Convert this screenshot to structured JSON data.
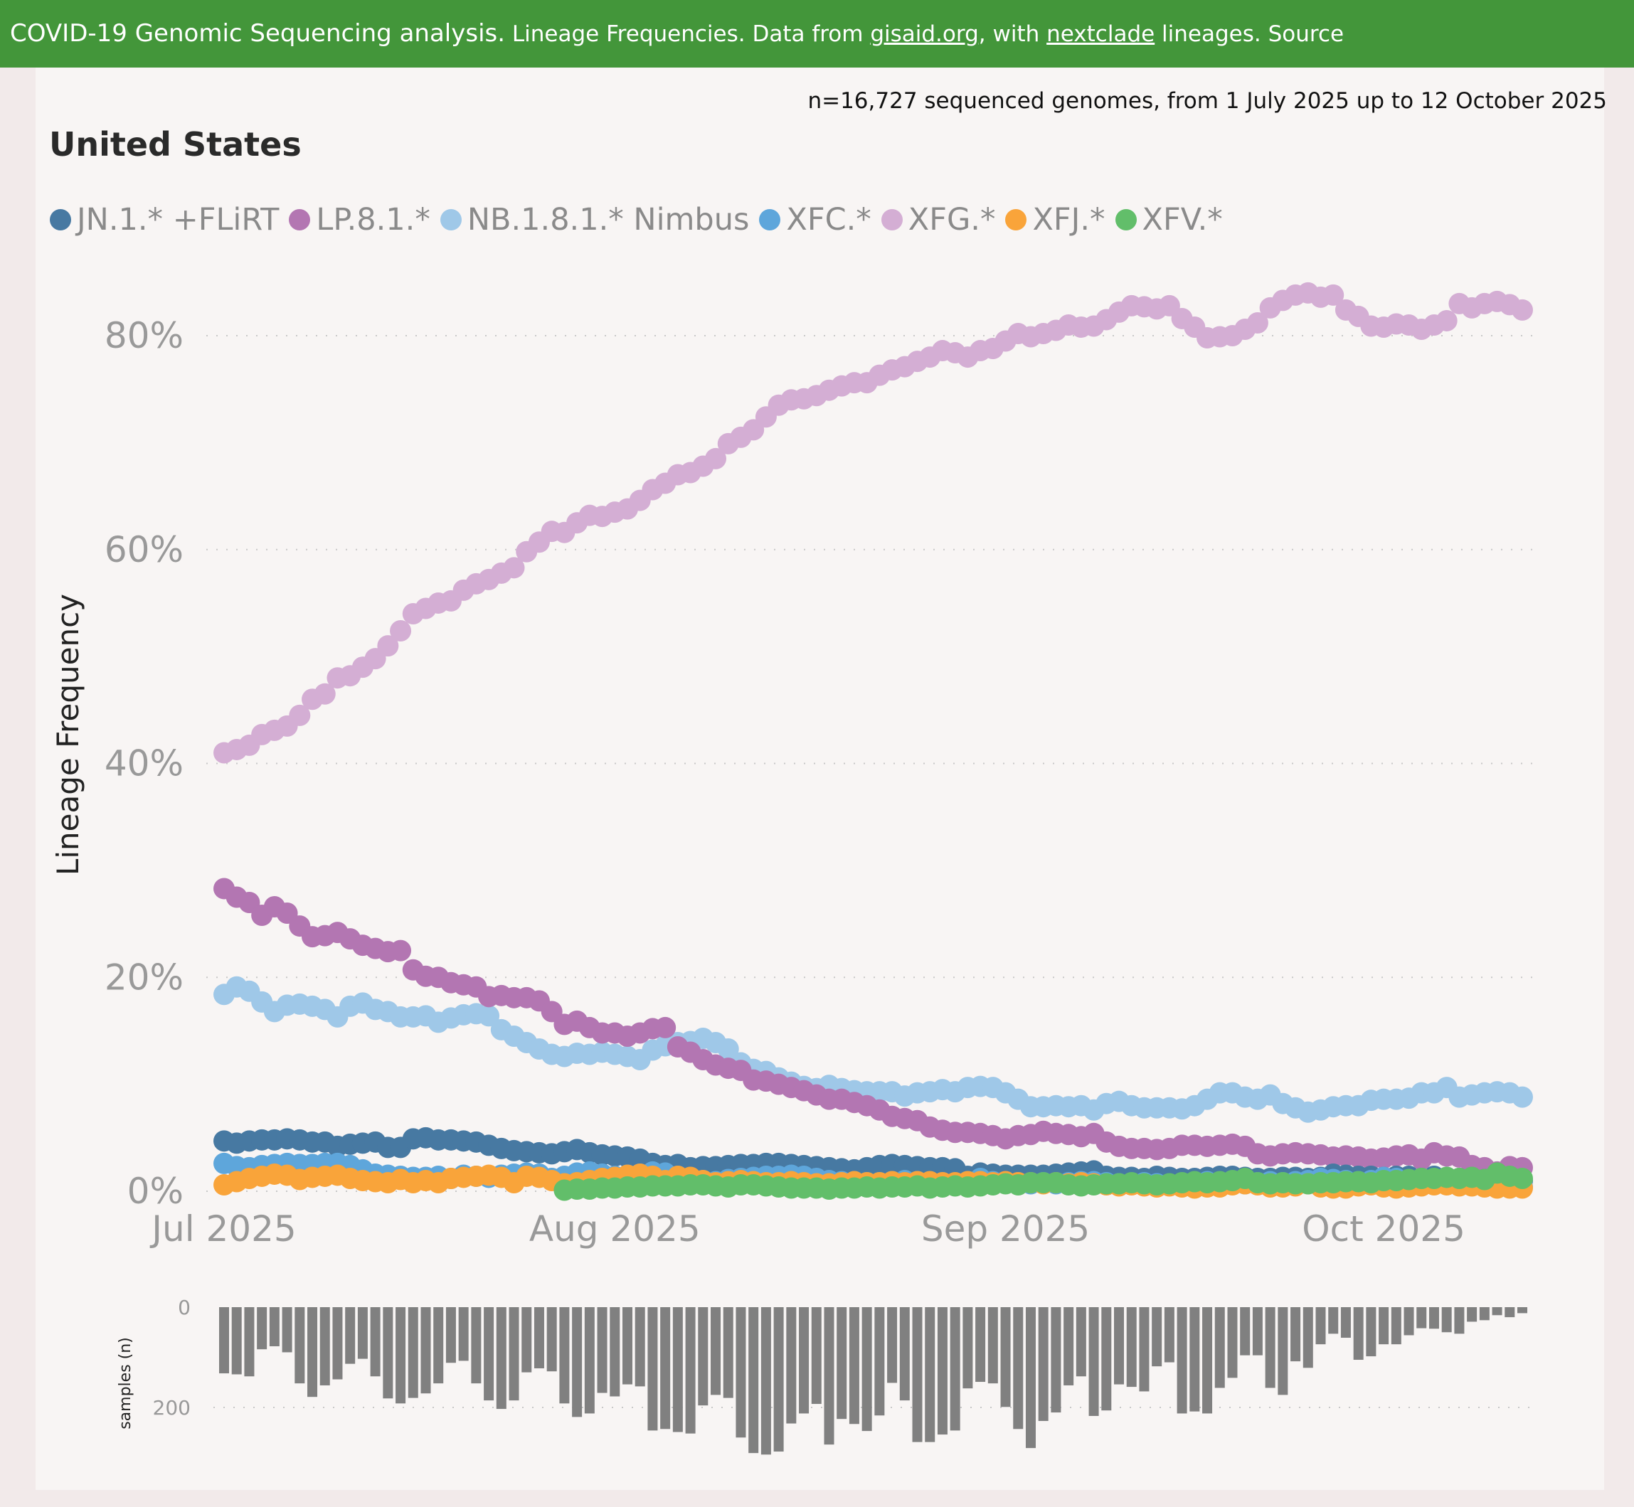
{
  "header": {
    "part1": "COVID-19 Genomic Sequencing analysis.",
    "part2": " Lineage Frequencies. Data from ",
    "link1": "gisaid.org",
    "part3": ", with ",
    "link2": "nextclade",
    "part4": " lineages. Source"
  },
  "subtitle": "n=16,727 sequenced genomes, from 1 July 2025 up to 12 October 2025",
  "region": "United States",
  "chart_data": [
    {
      "type": "scatter",
      "ylabel": "Lineage Frequency",
      "ylim": [
        0,
        85
      ],
      "yticks": [
        0,
        20,
        40,
        60,
        80
      ],
      "ytick_labels": [
        "0%",
        "20%",
        "40%",
        "60%",
        "80%"
      ],
      "x_start": "2025-07-01",
      "x_end": "2025-10-12",
      "xticks": [
        "2025-07-01",
        "2025-08-01",
        "2025-09-01",
        "2025-10-01"
      ],
      "xtick_labels": [
        "Jul 2025",
        "Aug 2025",
        "Sep 2025",
        "Oct 2025"
      ],
      "grid": "horizontal dotted",
      "legend": "top-left",
      "series": [
        {
          "name": "JN.1.* +FLiRT",
          "color": "#4779a2",
          "values": [
            4.7,
            4.5,
            4.7,
            4.8,
            4.8,
            4.9,
            4.8,
            4.6,
            4.6,
            4.2,
            4.4,
            4.5,
            4.6,
            4.1,
            4.1,
            4.9,
            5.0,
            4.8,
            4.8,
            4.7,
            4.6,
            4.3,
            4.0,
            3.8,
            3.7,
            3.6,
            3.5,
            3.7,
            3.9,
            3.6,
            3.4,
            3.3,
            3.2,
            3.0,
            2.6,
            2.4,
            2.5,
            2.2,
            2.3,
            2.3,
            2.4,
            2.5,
            2.5,
            2.6,
            2.6,
            2.5,
            2.4,
            2.3,
            2.2,
            2.1,
            2.0,
            2.2,
            2.4,
            2.5,
            2.4,
            2.3,
            2.2,
            2.2,
            2.1,
            1.4,
            1.7,
            1.6,
            1.5,
            1.5,
            1.5,
            1.5,
            1.6,
            1.7,
            1.8,
            1.9,
            1.4,
            1.3,
            1.3,
            1.2,
            1.4,
            1.3,
            1.2,
            1.2,
            1.3,
            1.4,
            1.4,
            1.3,
            1.2,
            1.2,
            1.3,
            1.3,
            1.2,
            1.3,
            1.6,
            1.5,
            1.4,
            1.4,
            1.3,
            1.4,
            1.4,
            1.2,
            1.4,
            1.3,
            1.2,
            1.2,
            1.1,
            1.0,
            1.2,
            1.0
          ]
        },
        {
          "name": "LP.8.1.*",
          "color": "#b376b2",
          "values": [
            28.3,
            27.5,
            27.0,
            25.8,
            26.6,
            26.0,
            24.8,
            23.8,
            23.9,
            24.2,
            23.6,
            23.0,
            22.7,
            22.4,
            22.5,
            20.7,
            20.1,
            20.0,
            19.5,
            19.3,
            19.1,
            18.2,
            18.3,
            18.1,
            18.1,
            17.8,
            16.8,
            15.6,
            15.9,
            15.3,
            14.8,
            14.8,
            14.5,
            14.8,
            15.2,
            15.3,
            13.5,
            13.0,
            12.3,
            11.8,
            11.5,
            11.3,
            10.4,
            10.3,
            10.0,
            9.7,
            9.4,
            9.0,
            8.6,
            8.6,
            8.3,
            8.0,
            7.6,
            7.0,
            6.8,
            6.6,
            6.0,
            5.7,
            5.5,
            5.5,
            5.4,
            5.2,
            4.9,
            5.2,
            5.3,
            5.6,
            5.4,
            5.3,
            5.1,
            5.4,
            4.6,
            4.2,
            4.0,
            4.0,
            3.9,
            4.0,
            4.3,
            4.3,
            4.2,
            4.3,
            4.4,
            4.2,
            3.5,
            3.3,
            3.5,
            3.6,
            3.5,
            3.4,
            3.2,
            3.3,
            3.2,
            3.0,
            3.1,
            3.3,
            3.4,
            3.0,
            3.6,
            3.3,
            3.2,
            2.4,
            2.2,
            1.8,
            2.3,
            2.2
          ]
        },
        {
          "name": "NB.1.8.1.* Nimbus",
          "color": "#9fc8e8",
          "values": [
            18.4,
            19.1,
            18.7,
            17.7,
            16.8,
            17.4,
            17.5,
            17.3,
            17.0,
            16.3,
            17.3,
            17.6,
            17.0,
            16.8,
            16.3,
            16.3,
            16.4,
            15.8,
            16.2,
            16.5,
            16.6,
            16.4,
            15.1,
            14.5,
            13.9,
            13.3,
            12.8,
            12.6,
            12.9,
            12.8,
            13.0,
            12.8,
            12.6,
            12.3,
            13.2,
            13.6,
            13.9,
            14.0,
            14.3,
            13.9,
            13.3,
            12.0,
            11.4,
            11.2,
            10.6,
            10.2,
            9.8,
            9.6,
            9.9,
            9.6,
            9.4,
            9.3,
            9.3,
            9.3,
            8.9,
            9.2,
            9.3,
            9.5,
            9.3,
            9.7,
            9.8,
            9.7,
            9.2,
            8.6,
            7.9,
            7.9,
            8.0,
            7.9,
            8.0,
            7.6,
            8.2,
            8.4,
            8.0,
            7.8,
            7.8,
            7.8,
            7.7,
            8.0,
            8.6,
            9.2,
            9.2,
            8.8,
            8.6,
            9.0,
            8.2,
            7.8,
            7.4,
            7.6,
            7.9,
            8.0,
            8.0,
            8.5,
            8.6,
            8.6,
            8.7,
            9.2,
            9.2,
            9.7,
            8.8,
            9.0,
            9.2,
            9.3,
            9.2,
            8.8
          ]
        },
        {
          "name": "XFC.*",
          "color": "#5ea6db",
          "values": [
            2.6,
            2.3,
            2.2,
            2.4,
            2.5,
            2.6,
            2.5,
            2.5,
            2.6,
            2.6,
            2.4,
            2.0,
            1.6,
            1.5,
            1.4,
            1.3,
            1.3,
            1.4,
            1.2,
            1.5,
            1.4,
            1.3,
            1.5,
            1.6,
            1.7,
            1.6,
            1.2,
            1.4,
            1.7,
            1.8,
            1.6,
            1.4,
            1.5,
            1.6,
            1.8,
            1.7,
            1.4,
            1.2,
            1.0,
            0.9,
            1.1,
            1.2,
            1.3,
            1.4,
            1.4,
            1.5,
            1.4,
            1.2,
            1.0,
            0.9,
            0.9,
            0.8,
            0.8,
            0.9,
            1.0,
            0.9,
            0.8,
            0.8,
            0.7,
            0.9,
            1.2,
            0.9,
            0.8,
            0.8,
            0.7,
            0.8,
            0.7,
            0.8,
            0.9,
            0.9,
            0.8,
            0.7,
            0.7,
            0.8,
            0.7,
            0.6,
            0.7,
            0.8,
            0.9,
            0.8,
            0.8,
            0.7,
            0.8,
            0.9,
            0.8,
            0.9,
            1.0,
            1.2,
            1.1,
            1.0,
            0.9,
            1.0,
            1.3,
            1.2,
            1.0,
            1.0,
            1.1,
            1.2,
            1.0,
            0.9,
            0.7,
            0.6,
            0.5,
            0.4
          ]
        },
        {
          "name": "XFG.*",
          "color": "#d4aed4",
          "values": [
            41.0,
            41.3,
            41.7,
            42.7,
            43.1,
            43.5,
            44.5,
            46.0,
            46.5,
            48.0,
            48.2,
            49.0,
            49.8,
            51.0,
            52.4,
            54.0,
            54.5,
            55.0,
            55.2,
            56.2,
            56.8,
            57.2,
            57.8,
            58.3,
            59.8,
            60.7,
            61.7,
            61.6,
            62.5,
            63.2,
            63.1,
            63.5,
            63.8,
            64.6,
            65.6,
            66.2,
            67.0,
            67.2,
            67.8,
            68.5,
            69.9,
            70.5,
            71.2,
            72.4,
            73.5,
            74.0,
            74.1,
            74.4,
            74.9,
            75.3,
            75.6,
            75.6,
            76.3,
            76.8,
            77.1,
            77.6,
            78.0,
            78.6,
            78.4,
            78.0,
            78.6,
            78.8,
            79.5,
            80.2,
            79.9,
            80.2,
            80.5,
            81.0,
            80.8,
            80.9,
            81.5,
            82.2,
            82.8,
            82.7,
            82.5,
            82.8,
            81.6,
            80.8,
            79.8,
            79.9,
            80.0,
            80.6,
            81.2,
            82.6,
            83.3,
            83.8,
            84.0,
            83.6,
            83.8,
            82.4,
            81.8,
            80.9,
            80.8,
            81.1,
            81.0,
            80.6,
            81.0,
            81.4,
            83.0,
            82.6,
            83.0,
            83.2,
            82.9,
            82.4
          ]
        },
        {
          "name": "XFJ.*",
          "color": "#f9a43a",
          "values": [
            0.6,
            0.9,
            1.2,
            1.4,
            1.6,
            1.5,
            1.1,
            1.3,
            1.4,
            1.5,
            1.2,
            1.0,
            0.9,
            0.8,
            1.1,
            0.8,
            1.0,
            0.8,
            1.2,
            1.3,
            1.4,
            1.5,
            1.3,
            0.8,
            1.4,
            1.3,
            1.0,
            0.7,
            0.8,
            1.0,
            1.2,
            1.3,
            1.5,
            1.6,
            1.4,
            1.0,
            1.4,
            1.3,
            1.0,
            0.8,
            0.9,
            1.0,
            0.9,
            0.8,
            0.8,
            0.9,
            0.8,
            0.7,
            0.7,
            0.8,
            0.9,
            0.8,
            0.8,
            0.9,
            0.8,
            0.9,
            0.9,
            0.8,
            0.8,
            0.9,
            0.9,
            0.8,
            0.9,
            0.8,
            0.8,
            0.7,
            0.8,
            0.7,
            0.8,
            0.7,
            0.6,
            0.5,
            0.6,
            0.5,
            0.4,
            0.5,
            0.4,
            0.3,
            0.4,
            0.4,
            0.6,
            0.7,
            0.6,
            0.4,
            0.4,
            0.5,
            0.7,
            0.4,
            0.3,
            0.3,
            0.5,
            0.6,
            0.4,
            0.3,
            0.4,
            0.5,
            0.6,
            0.6,
            0.5,
            0.5,
            0.4,
            0.3,
            0.3,
            0.3
          ]
        },
        {
          "name": "XFV.*",
          "color": "#62be6a",
          "values": [
            null,
            null,
            null,
            null,
            null,
            null,
            null,
            null,
            null,
            null,
            null,
            null,
            null,
            null,
            null,
            null,
            null,
            null,
            null,
            null,
            null,
            null,
            null,
            null,
            null,
            null,
            null,
            0.1,
            0.2,
            0.2,
            0.3,
            0.3,
            0.4,
            0.4,
            0.5,
            0.5,
            0.5,
            0.6,
            0.6,
            0.5,
            0.4,
            0.6,
            0.6,
            0.5,
            0.4,
            0.3,
            0.3,
            0.3,
            0.2,
            0.3,
            0.3,
            0.4,
            0.3,
            0.4,
            0.4,
            0.5,
            0.3,
            0.4,
            0.5,
            0.4,
            0.5,
            0.6,
            0.7,
            0.6,
            0.8,
            0.8,
            0.8,
            0.6,
            0.5,
            0.6,
            0.7,
            0.7,
            0.8,
            0.7,
            0.6,
            0.7,
            0.8,
            0.9,
            0.8,
            0.9,
            1.0,
            1.2,
            0.8,
            0.7,
            0.8,
            0.7,
            0.7,
            0.8,
            0.8,
            0.9,
            0.9,
            0.8,
            1.0,
            1.0,
            1.1,
            1.2,
            1.2,
            1.3,
            1.2,
            1.3,
            1.1,
            1.7,
            1.4,
            1.2
          ]
        }
      ]
    },
    {
      "type": "bar",
      "ylabel": "samples (n)",
      "ylim": [
        0,
        300
      ],
      "yticks": [
        0,
        200
      ],
      "ytick_labels": [
        "0",
        "200"
      ],
      "orientation": "downward",
      "color": "#808080",
      "grid": "horizontal dotted",
      "values": [
        132,
        134,
        138,
        84,
        78,
        90,
        152,
        179,
        156,
        144,
        113,
        103,
        138,
        182,
        192,
        181,
        172,
        152,
        111,
        107,
        152,
        186,
        203,
        186,
        130,
        122,
        128,
        192,
        219,
        212,
        171,
        178,
        154,
        158,
        246,
        243,
        249,
        252,
        196,
        175,
        181,
        260,
        291,
        294,
        288,
        232,
        212,
        193,
        274,
        223,
        233,
        247,
        216,
        151,
        186,
        269,
        269,
        254,
        246,
        162,
        149,
        152,
        199,
        243,
        281,
        227,
        210,
        156,
        138,
        217,
        206,
        154,
        159,
        168,
        118,
        110,
        212,
        208,
        212,
        161,
        141,
        96,
        96,
        161,
        175,
        108,
        121,
        74,
        53,
        61,
        105,
        98,
        74,
        74,
        56,
        42,
        43,
        50,
        53,
        29,
        26,
        16,
        20,
        12
      ]
    }
  ]
}
